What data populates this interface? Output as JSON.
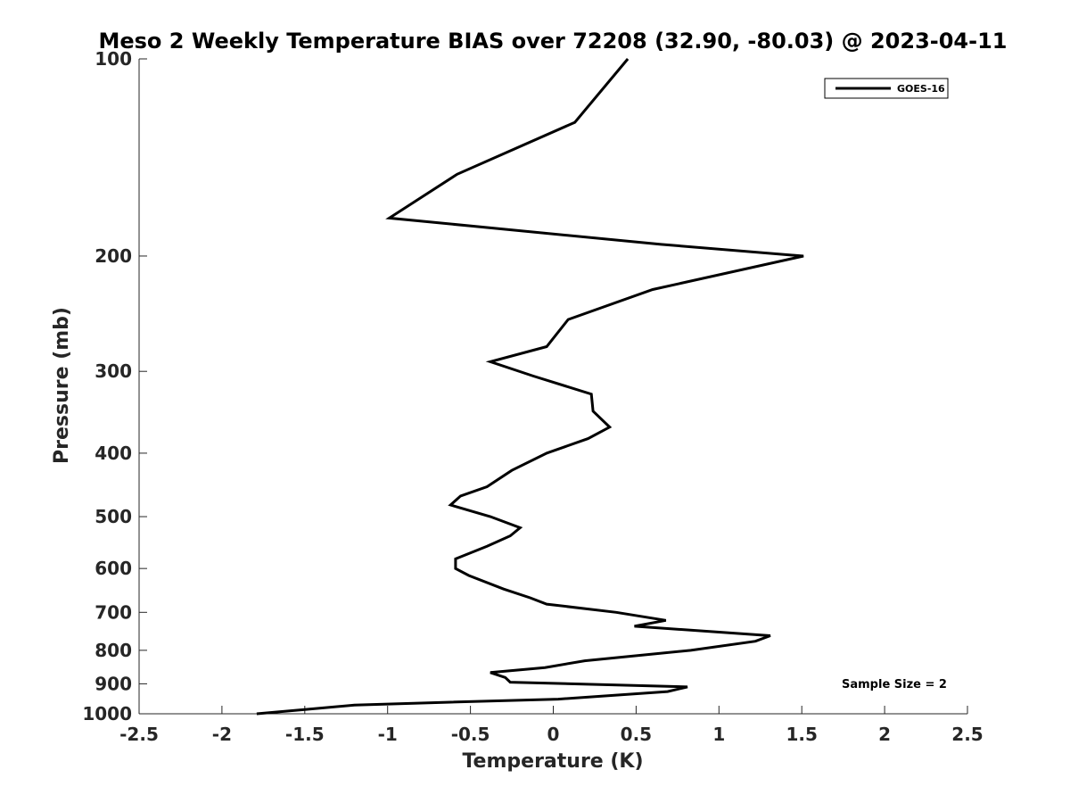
{
  "chart_data": {
    "type": "line",
    "title": "Meso 2 Weekly Temperature BIAS over 72208 (32.90, -80.03) @ 2023-04-11",
    "xlabel": "Temperature (K)",
    "ylabel": "Pressure (mb)",
    "xlim": [
      -2.5,
      2.5
    ],
    "ylim": [
      1000,
      100
    ],
    "y_scale": "log",
    "y_reversed": true,
    "grid": false,
    "legend_position": "top-right",
    "x_ticks": [
      -2.5,
      -2,
      -1.5,
      -1,
      -0.5,
      0,
      0.5,
      1,
      1.5,
      2,
      2.5
    ],
    "x_tick_labels": [
      "-2.5",
      "-2",
      "-1.5",
      "-1",
      "-0.5",
      "0",
      "0.5",
      "1",
      "1.5",
      "2",
      "2.5"
    ],
    "y_ticks": [
      100,
      200,
      300,
      400,
      500,
      600,
      700,
      800,
      900,
      1000
    ],
    "y_tick_labels": [
      "100",
      "200",
      "300",
      "400",
      "500",
      "600",
      "700",
      "800",
      "900",
      "1000"
    ],
    "annotation": "Sample Size = 2",
    "series": [
      {
        "name": "GOES-16",
        "color": "#000000",
        "points": [
          {
            "t": 0.45,
            "p": 100
          },
          {
            "t": 0.13,
            "p": 125
          },
          {
            "t": -0.58,
            "p": 150
          },
          {
            "t": -0.99,
            "p": 175
          },
          {
            "t": 0.65,
            "p": 192
          },
          {
            "t": 1.51,
            "p": 200
          },
          {
            "t": 0.6,
            "p": 225
          },
          {
            "t": 0.09,
            "p": 250
          },
          {
            "t": -0.04,
            "p": 275
          },
          {
            "t": -0.38,
            "p": 290
          },
          {
            "t": -0.12,
            "p": 305
          },
          {
            "t": 0.23,
            "p": 325
          },
          {
            "t": 0.24,
            "p": 345
          },
          {
            "t": 0.34,
            "p": 365
          },
          {
            "t": 0.21,
            "p": 380
          },
          {
            "t": -0.04,
            "p": 400
          },
          {
            "t": -0.25,
            "p": 425
          },
          {
            "t": -0.4,
            "p": 450
          },
          {
            "t": -0.56,
            "p": 465
          },
          {
            "t": -0.62,
            "p": 480
          },
          {
            "t": -0.38,
            "p": 500
          },
          {
            "t": -0.2,
            "p": 520
          },
          {
            "t": -0.26,
            "p": 535
          },
          {
            "t": -0.4,
            "p": 555
          },
          {
            "t": -0.59,
            "p": 580
          },
          {
            "t": -0.59,
            "p": 600
          },
          {
            "t": -0.51,
            "p": 615
          },
          {
            "t": -0.3,
            "p": 645
          },
          {
            "t": -0.14,
            "p": 665
          },
          {
            "t": -0.04,
            "p": 680
          },
          {
            "t": 0.38,
            "p": 700
          },
          {
            "t": 0.68,
            "p": 720
          },
          {
            "t": 0.49,
            "p": 735
          },
          {
            "t": 1.31,
            "p": 760
          },
          {
            "t": 1.22,
            "p": 775
          },
          {
            "t": 0.83,
            "p": 800
          },
          {
            "t": 0.19,
            "p": 830
          },
          {
            "t": -0.05,
            "p": 850
          },
          {
            "t": -0.38,
            "p": 865
          },
          {
            "t": -0.29,
            "p": 880
          },
          {
            "t": -0.26,
            "p": 895
          },
          {
            "t": 0.81,
            "p": 910
          },
          {
            "t": 0.69,
            "p": 925
          },
          {
            "t": 0.03,
            "p": 950
          },
          {
            "t": -0.62,
            "p": 960
          },
          {
            "t": -1.2,
            "p": 970
          },
          {
            "t": -1.5,
            "p": 985
          },
          {
            "t": -1.79,
            "p": 1000
          }
        ]
      }
    ]
  }
}
